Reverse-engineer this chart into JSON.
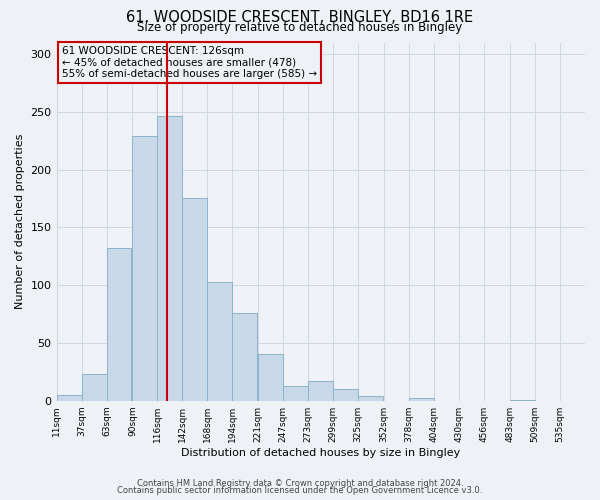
{
  "title": "61, WOODSIDE CRESCENT, BINGLEY, BD16 1RE",
  "subtitle": "Size of property relative to detached houses in Bingley",
  "xlabel": "Distribution of detached houses by size in Bingley",
  "ylabel": "Number of detached properties",
  "bar_color": "#c8d8e8",
  "bar_edge_color": "#8ab4cc",
  "grid_color": "#ccd8e4",
  "vline_color": "#cc0000",
  "vline_x": 126,
  "annotation_box_color": "#cc0000",
  "annotation_lines": [
    "61 WOODSIDE CRESCENT: 126sqm",
    "← 45% of detached houses are smaller (478)",
    "55% of semi-detached houses are larger (585) →"
  ],
  "bins": [
    11,
    37,
    63,
    90,
    116,
    142,
    168,
    194,
    221,
    247,
    273,
    299,
    325,
    352,
    378,
    404,
    430,
    456,
    483,
    509,
    535
  ],
  "counts": [
    5,
    23,
    132,
    229,
    246,
    175,
    103,
    76,
    40,
    13,
    17,
    10,
    4,
    0,
    2,
    0,
    0,
    0,
    1,
    0
  ],
  "ylim": [
    0,
    310
  ],
  "yticks": [
    0,
    50,
    100,
    150,
    200,
    250,
    300
  ],
  "footnote1": "Contains HM Land Registry data © Crown copyright and database right 2024.",
  "footnote2": "Contains public sector information licensed under the Open Government Licence v3.0.",
  "bg_color": "#eef2f7"
}
